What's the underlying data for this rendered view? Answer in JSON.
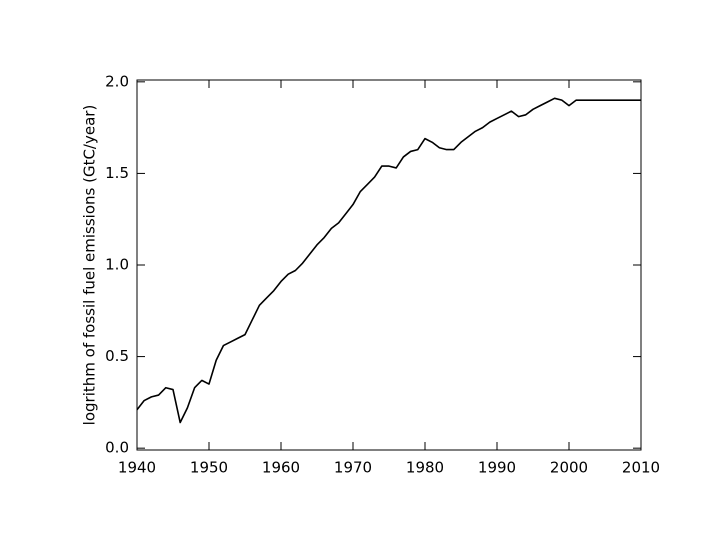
{
  "chart_data": {
    "type": "line",
    "y_label": "logrithm of fossil fuel emissions (GtC/year)",
    "x": [
      1940,
      1941,
      1942,
      1943,
      1944,
      1945,
      1946,
      1947,
      1948,
      1949,
      1950,
      1951,
      1952,
      1953,
      1954,
      1955,
      1956,
      1957,
      1958,
      1959,
      1960,
      1961,
      1962,
      1963,
      1964,
      1965,
      1966,
      1967,
      1968,
      1969,
      1970,
      1971,
      1972,
      1973,
      1974,
      1975,
      1976,
      1977,
      1978,
      1979,
      1980,
      1981,
      1982,
      1983,
      1984,
      1985,
      1986,
      1987,
      1988,
      1989,
      1990,
      1991,
      1992,
      1993,
      1994,
      1995,
      1996,
      1997,
      1998,
      1999,
      2000,
      2001,
      2002,
      2003,
      2004,
      2005,
      2006,
      2007,
      2008,
      2009,
      2010
    ],
    "values": [
      0.21,
      0.26,
      0.28,
      0.29,
      0.33,
      0.32,
      0.14,
      0.22,
      0.33,
      0.37,
      0.35,
      0.48,
      0.56,
      0.58,
      0.6,
      0.62,
      0.7,
      0.78,
      0.82,
      0.86,
      0.91,
      0.95,
      0.97,
      1.01,
      1.06,
      1.11,
      1.15,
      1.2,
      1.23,
      1.28,
      1.33,
      1.4,
      1.44,
      1.48,
      1.54,
      1.54,
      1.53,
      1.59,
      1.62,
      1.63,
      1.69,
      1.67,
      1.64,
      1.63,
      1.63,
      1.67,
      1.7,
      1.73,
      1.75,
      1.78,
      1.8,
      1.82,
      1.84,
      1.81,
      1.82,
      1.85,
      1.87,
      1.89,
      1.91,
      1.9,
      1.87,
      1.9,
      1.9,
      1.9,
      1.9,
      1.9,
      1.9,
      1.9,
      1.9,
      1.9,
      1.9
    ],
    "color": "#000000",
    "xlim": [
      1940,
      2010
    ],
    "xticks": [
      1940,
      1950,
      1960,
      1970,
      1980,
      1990,
      2000,
      2010
    ],
    "ylim": [
      -0.01,
      2.01
    ],
    "yticks": [
      {
        "value": 0,
        "label": "0.0"
      },
      0.5,
      {
        "value": 1,
        "label": "1.0"
      },
      1.5,
      {
        "value": 2,
        "label": "2.0"
      }
    ]
  }
}
